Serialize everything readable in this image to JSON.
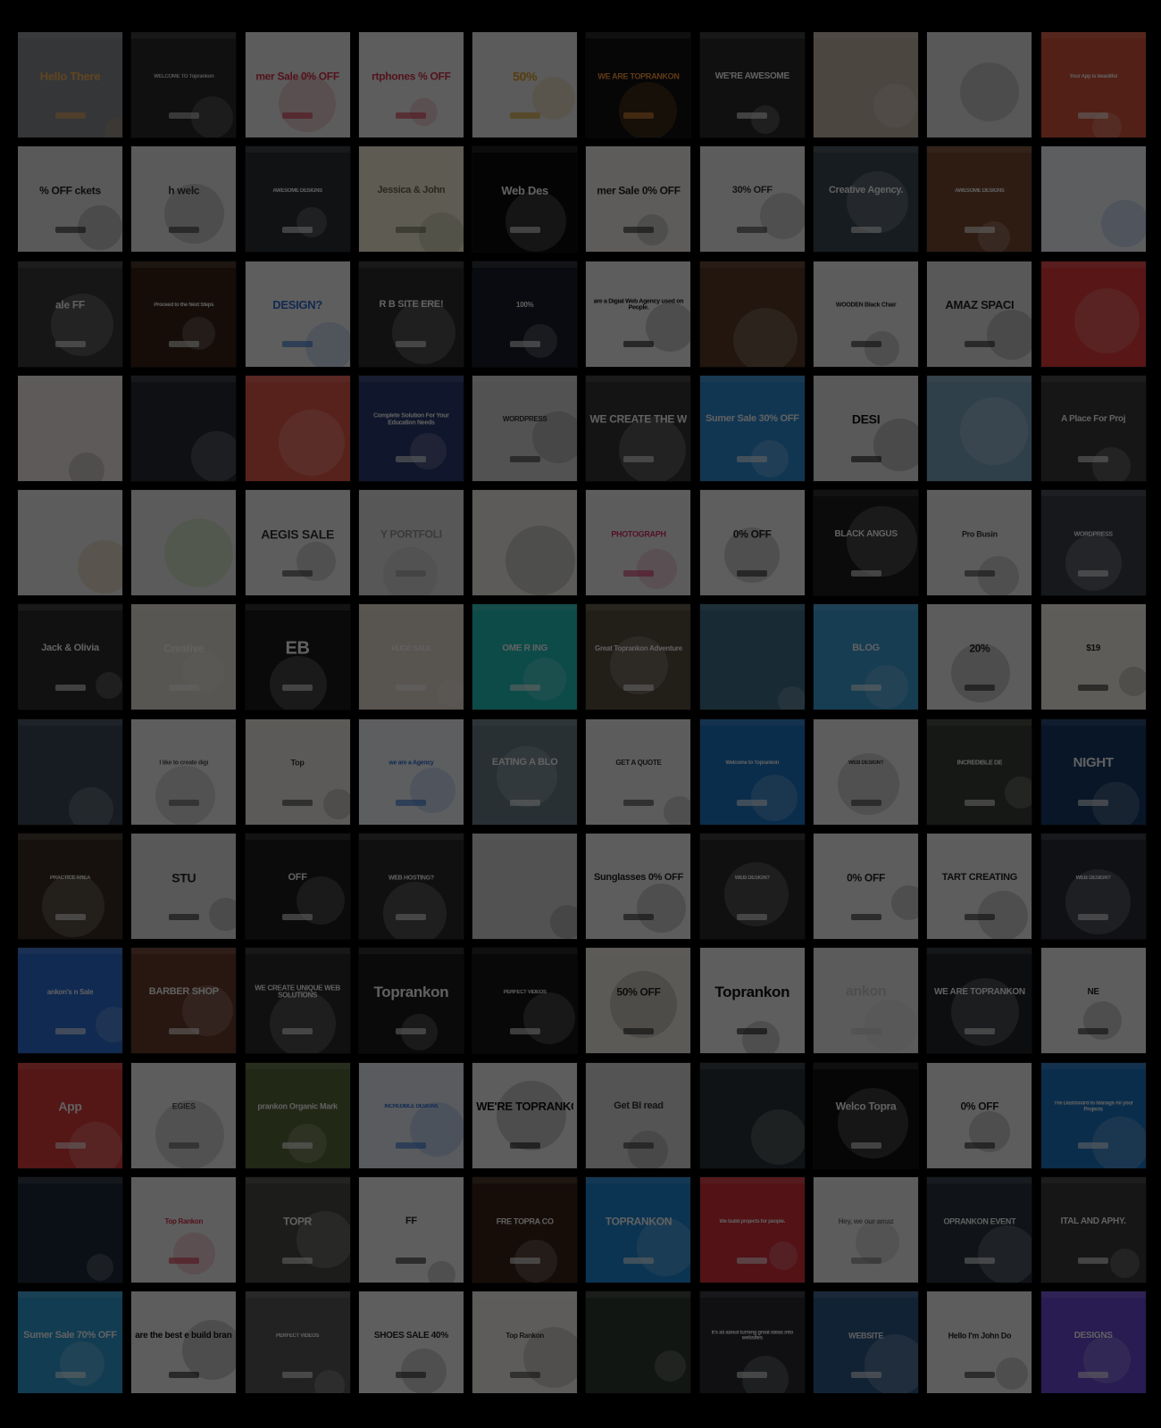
{
  "colors": {
    "background": "#000000",
    "overlay": "rgba(0,0,0,0.62)"
  },
  "tiles": [
    {
      "text": "Hello There",
      "bg": "#8a8f94",
      "fg": "#ffb35a",
      "size": 13
    },
    {
      "text": "WELCOME TO Toprankon",
      "bg": "#2a2a2a",
      "fg": "#dddddd",
      "size": 6
    },
    {
      "text": "mer Sale 0% OFF",
      "bg": "#f2f2f2",
      "fg": "#d9304a",
      "size": 12
    },
    {
      "text": "rtphones % OFF",
      "bg": "#f4f4f4",
      "fg": "#d9304a",
      "size": 12
    },
    {
      "text": "50%",
      "bg": "#eeeeee",
      "fg": "#e0a020",
      "size": 14
    },
    {
      "text": "WE ARE TOPRANKON",
      "bg": "#121212",
      "fg": "#ff9a3c",
      "size": 9
    },
    {
      "text": "WE'RE AWESOME",
      "bg": "#2c2c2c",
      "fg": "#ffffff",
      "size": 10
    },
    {
      "text": "",
      "bg": "#c9b9aa",
      "fg": "#ffffff",
      "size": 10
    },
    {
      "text": "",
      "bg": "#e8e8e8",
      "fg": "#333333",
      "size": 10
    },
    {
      "text": "Your App is beautiful",
      "bg": "#d8563b",
      "fg": "#ffffff",
      "size": 6
    },
    {
      "text": "% OFF ckets",
      "bg": "#e9e9e9",
      "fg": "#222222",
      "size": 12
    },
    {
      "text": "h welc",
      "bg": "#ededed",
      "fg": "#333333",
      "size": 12
    },
    {
      "text": "AWESOME DESIGNS",
      "bg": "#2b3036",
      "fg": "#ffffff",
      "size": 6
    },
    {
      "text": "Jessica & John",
      "bg": "#f3efd8",
      "fg": "#6b6b4a",
      "size": 11
    },
    {
      "text": "Web Des",
      "bg": "#0c0c0c",
      "fg": "#ffffff",
      "size": 13
    },
    {
      "text": "mer Sale 0% OFF",
      "bg": "#f4f2f0",
      "fg": "#222222",
      "size": 12
    },
    {
      "text": "30% OFF",
      "bg": "#f2f2f2",
      "fg": "#333333",
      "size": 11
    },
    {
      "text": "Creative Agency.",
      "bg": "#3d4a55",
      "fg": "#ffffff",
      "size": 11
    },
    {
      "text": "AWESOME DESIGNS",
      "bg": "#7a4b33",
      "fg": "#ffffff",
      "size": 6
    },
    {
      "text": "",
      "bg": "#f4f7fb",
      "fg": "#2d6fd6",
      "size": 10
    },
    {
      "text": "ale FF",
      "bg": "#3a3a3a",
      "fg": "#ffffff",
      "size": 12
    },
    {
      "text": "Proceed to the Next Steps",
      "bg": "#3a2416",
      "fg": "#ffffff",
      "size": 6
    },
    {
      "text": "DESIGN?",
      "bg": "#f6f6f6",
      "fg": "#2d6fd6",
      "size": 13
    },
    {
      "text": "R B SITE ERE!",
      "bg": "#2d2d2d",
      "fg": "#ffffff",
      "size": 11
    },
    {
      "text": "100%",
      "bg": "#1a1f2a",
      "fg": "#ffffff",
      "size": 8
    },
    {
      "text": "are a Digial Web Agency used on People.",
      "bg": "#f3f3f3",
      "fg": "#111111",
      "size": 7
    },
    {
      "text": "",
      "bg": "#5a3a26",
      "fg": "#ffffff",
      "size": 10
    },
    {
      "text": "WOODEN Black Chair",
      "bg": "#f2f2f2",
      "fg": "#222222",
      "size": 7
    },
    {
      "text": "AMAZ SPACI",
      "bg": "#e6e6e6",
      "fg": "#222222",
      "size": 13
    },
    {
      "text": "",
      "bg": "#e63a3a",
      "fg": "#ffffff",
      "size": 10
    },
    {
      "text": "",
      "bg": "#f6ecec",
      "fg": "#333333",
      "size": 10
    },
    {
      "text": "",
      "bg": "#262a33",
      "fg": "#ffffff",
      "size": 10
    },
    {
      "text": "",
      "bg": "#e85a4a",
      "fg": "#ffffff",
      "size": 10
    },
    {
      "text": "Complete Solution For Your Education Needs",
      "bg": "#2b3a72",
      "fg": "#ffffff",
      "size": 7
    },
    {
      "text": "WORDPRESS",
      "bg": "#d8d8d8",
      "fg": "#333333",
      "size": 8
    },
    {
      "text": "WE CREATE THE WEB",
      "bg": "#333533",
      "fg": "#ffffff",
      "size": 12
    },
    {
      "text": "Sumer Sale 30% OFF",
      "bg": "#2f8fd8",
      "fg": "#ffffff",
      "size": 11
    },
    {
      "text": "DESI",
      "bg": "#e9e9e9",
      "fg": "#111111",
      "size": 14
    },
    {
      "text": "",
      "bg": "#7fa8c6",
      "fg": "#ffffff",
      "size": 10
    },
    {
      "text": "A Place For Proj",
      "bg": "#3a3a3a",
      "fg": "#ffffff",
      "size": 10
    },
    {
      "text": "",
      "bg": "#f2f2f2",
      "fg": "#c58a2a",
      "size": 10
    },
    {
      "text": "",
      "bg": "#eeeeee",
      "fg": "#7ec84a",
      "size": 10
    },
    {
      "text": "AEGIS SALE",
      "bg": "#f4f4f6",
      "fg": "#333333",
      "size": 14
    },
    {
      "text": "Y PORTFOLI",
      "bg": "#e4e4e4",
      "fg": "#999999",
      "size": 12
    },
    {
      "text": "",
      "bg": "#f1efe9",
      "fg": "#333333",
      "size": 10
    },
    {
      "text": "PHOTOGRAPH",
      "bg": "#f2f2f2",
      "fg": "#d9306a",
      "size": 9
    },
    {
      "text": "0% OFF",
      "bg": "#f6f6f6",
      "fg": "#222222",
      "size": 12
    },
    {
      "text": "BLACK ANGUS",
      "bg": "#1e1e1e",
      "fg": "#ffffff",
      "size": 10
    },
    {
      "text": "Pro Busin",
      "bg": "#f2f2f2",
      "fg": "#333333",
      "size": 9
    },
    {
      "text": "WORDPRESS",
      "bg": "#3a3f48",
      "fg": "#ffffff",
      "size": 7
    },
    {
      "text": "Jack & Olivia",
      "bg": "#2e2e2e",
      "fg": "#ffffff",
      "size": 11
    },
    {
      "text": "Creative",
      "bg": "#e8e1d8",
      "fg": "#ffffff",
      "size": 12
    },
    {
      "text": "EB",
      "bg": "#1c1c1c",
      "fg": "#ffffff",
      "size": 20
    },
    {
      "text": "HUGE SALE",
      "bg": "#e7ddd2",
      "fg": "#ffffff",
      "size": 8
    },
    {
      "text": "OME R ING",
      "bg": "#22c6c0",
      "fg": "#ffffff",
      "size": 10
    },
    {
      "text": "Great Toprankon Adventure",
      "bg": "#5a5040",
      "fg": "#ffffff",
      "size": 8
    },
    {
      "text": "",
      "bg": "#3f6f8a",
      "fg": "#ffffff",
      "size": 10
    },
    {
      "text": "BLOG",
      "bg": "#3aa0d8",
      "fg": "#ffffff",
      "size": 11
    },
    {
      "text": "20%",
      "bg": "#f1f1f1",
      "fg": "#222222",
      "size": 12
    },
    {
      "text": "$19",
      "bg": "#f6f2ea",
      "fg": "#222222",
      "size": 10
    },
    {
      "text": "",
      "bg": "#3a4a5a",
      "fg": "#ffffff",
      "size": 10
    },
    {
      "text": "I like to create digi",
      "bg": "#f4f4f4",
      "fg": "#555555",
      "size": 7
    },
    {
      "text": "Top",
      "bg": "#f1ede6",
      "fg": "#333333",
      "size": 9
    },
    {
      "text": "we are a Agency",
      "bg": "#f5f7fb",
      "fg": "#2d6fd6",
      "size": 7
    },
    {
      "text": "EATING A BLO",
      "bg": "#6a7f88",
      "fg": "#ffffff",
      "size": 11
    },
    {
      "text": "GET A QUOTE",
      "bg": "#f2f2f2",
      "fg": "#333333",
      "size": 8
    },
    {
      "text": "Welcome to Toprankon",
      "bg": "#1f78c8",
      "fg": "#ffffff",
      "size": 6
    },
    {
      "text": "WEB DESIGN?",
      "bg": "#f4f4f4",
      "fg": "#333333",
      "size": 6
    },
    {
      "text": "INCREDIBLE DE",
      "bg": "#3a3f38",
      "fg": "#ffffff",
      "size": 7
    },
    {
      "text": "NIGHT",
      "bg": "#163a6a",
      "fg": "#ffffff",
      "size": 15
    },
    {
      "text": "PRACTICE AREA",
      "bg": "#3a2e22",
      "fg": "#ffffff",
      "size": 6
    },
    {
      "text": "STU",
      "bg": "#e8e8e8",
      "fg": "#222222",
      "size": 14
    },
    {
      "text": "OFF",
      "bg": "#1e1e1e",
      "fg": "#ffffff",
      "size": 11
    },
    {
      "text": "WEB HOSTING?",
      "bg": "#2c2c2c",
      "fg": "#ffffff",
      "size": 7
    },
    {
      "text": "",
      "bg": "#d8d8d8",
      "fg": "#222222",
      "size": 10
    },
    {
      "text": "Sunglasses 0% OFF",
      "bg": "#f4f4f4",
      "fg": "#222222",
      "size": 11
    },
    {
      "text": "WEB DESIGN?",
      "bg": "#2a2a2a",
      "fg": "#ffffff",
      "size": 6
    },
    {
      "text": "0% OFF",
      "bg": "#f3f3f3",
      "fg": "#222222",
      "size": 12
    },
    {
      "text": "TART CREATING",
      "bg": "#f5f5f5",
      "fg": "#222222",
      "size": 11
    },
    {
      "text": "WEB DESIGN?",
      "bg": "#2a2d36",
      "fg": "#ffffff",
      "size": 6
    },
    {
      "text": "ankon's n Sale",
      "bg": "#2d6fd6",
      "fg": "#ffffff",
      "size": 8
    },
    {
      "text": "BARBER SHOP",
      "bg": "#6a3a2a",
      "fg": "#ffffff",
      "size": 11
    },
    {
      "text": "WE CREATE UNIQUE WEB SOLUTIONS",
      "bg": "#2a2a2a",
      "fg": "#ffffff",
      "size": 8
    },
    {
      "text": "Toprankon",
      "bg": "#1c1c1c",
      "fg": "#ffffff",
      "size": 17
    },
    {
      "text": "PERFECT VIDEOS",
      "bg": "#151515",
      "fg": "#ffffff",
      "size": 6
    },
    {
      "text": "50% OFF",
      "bg": "#f1ede4",
      "fg": "#222222",
      "size": 12
    },
    {
      "text": "Toprankon",
      "bg": "#f6f6f6",
      "fg": "#111111",
      "size": 17
    },
    {
      "text": "ankon",
      "bg": "#eeeeee",
      "fg": "#cccccc",
      "size": 16
    },
    {
      "text": "WE ARE TOPRANKON",
      "bg": "#22262c",
      "fg": "#ffffff",
      "size": 10
    },
    {
      "text": "NE",
      "bg": "#f4f4f4",
      "fg": "#222222",
      "size": 10
    },
    {
      "text": "App",
      "bg": "#e03a3a",
      "fg": "#ffffff",
      "size": 14
    },
    {
      "text": "EGIES",
      "bg": "#f3f3f3",
      "fg": "#555555",
      "size": 9
    },
    {
      "text": "prankon Organic Mark",
      "bg": "#5a6a3a",
      "fg": "#ffffff",
      "size": 9
    },
    {
      "text": "INCREDIBLE DESIGNS",
      "bg": "#eaf0f7",
      "fg": "#2d6fd6",
      "size": 6
    },
    {
      "text": "WE'RE TOPRANKON.",
      "bg": "#f4f4f4",
      "fg": "#111111",
      "size": 13
    },
    {
      "text": "Get Bl read",
      "bg": "#dcdcdc",
      "fg": "#333333",
      "size": 11
    },
    {
      "text": "",
      "bg": "#2a3238",
      "fg": "#ffffff",
      "size": 10
    },
    {
      "text": "Welco Topra",
      "bg": "#111111",
      "fg": "#ffffff",
      "size": 12
    },
    {
      "text": "0% OFF",
      "bg": "#f3f3f3",
      "fg": "#222222",
      "size": 12
    },
    {
      "text": "The Dashboard to Manage All your Projects",
      "bg": "#1f78c8",
      "fg": "#ffffff",
      "size": 6
    },
    {
      "text": "",
      "bg": "#1f2a3a",
      "fg": "#ffffff",
      "size": 10
    },
    {
      "text": "Top Rankon",
      "bg": "#f3f3f3",
      "fg": "#d9304a",
      "size": 8
    },
    {
      "text": "TOPR",
      "bg": "#4a4a44",
      "fg": "#ffffff",
      "size": 12
    },
    {
      "text": "FF",
      "bg": "#f6f6f6",
      "fg": "#222222",
      "size": 11
    },
    {
      "text": "FRE TOPRA CO",
      "bg": "#3a2418",
      "fg": "#ffffff",
      "size": 9
    },
    {
      "text": "TOPRANKON",
      "bg": "#1f88d8",
      "fg": "#ffffff",
      "size": 12
    },
    {
      "text": "We build projects for people.",
      "bg": "#d8303a",
      "fg": "#ffffff",
      "size": 6
    },
    {
      "text": "Hey, we our amaz",
      "bg": "#f2f2f2",
      "fg": "#777777",
      "size": 8
    },
    {
      "text": "OPRANKON EVENT",
      "bg": "#2a3440",
      "fg": "#ffffff",
      "size": 9
    },
    {
      "text": "ITAL AND APHY.",
      "bg": "#3a3a3a",
      "fg": "#ffffff",
      "size": 10
    },
    {
      "text": "Sumer Sale 70% OFF",
      "bg": "#2f9fd8",
      "fg": "#ffffff",
      "size": 11
    },
    {
      "text": "are the best e build brands",
      "bg": "#f4f4f4",
      "fg": "#111111",
      "size": 10
    },
    {
      "text": "PERFECT VIDEOS",
      "bg": "#5a5a5a",
      "fg": "#ffffff",
      "size": 6
    },
    {
      "text": "SHOES SALE 40%",
      "bg": "#f6f6f6",
      "fg": "#222222",
      "size": 10
    },
    {
      "text": "Top Rankon",
      "bg": "#f4f2ee",
      "fg": "#333333",
      "size": 8
    },
    {
      "text": "",
      "bg": "#2f3a30",
      "fg": "#ffffff",
      "size": 10
    },
    {
      "text": "It's all about turning great ideas into websites",
      "bg": "#2a2c30",
      "fg": "#ffffff",
      "size": 6
    },
    {
      "text": "WEBSITE",
      "bg": "#2f5a8a",
      "fg": "#ffffff",
      "size": 9
    },
    {
      "text": "Hello I'm John Do",
      "bg": "#f4f4f4",
      "fg": "#222222",
      "size": 9
    },
    {
      "text": "DESIGNS",
      "bg": "#6a4ad8",
      "fg": "#ffffff",
      "size": 10
    }
  ]
}
